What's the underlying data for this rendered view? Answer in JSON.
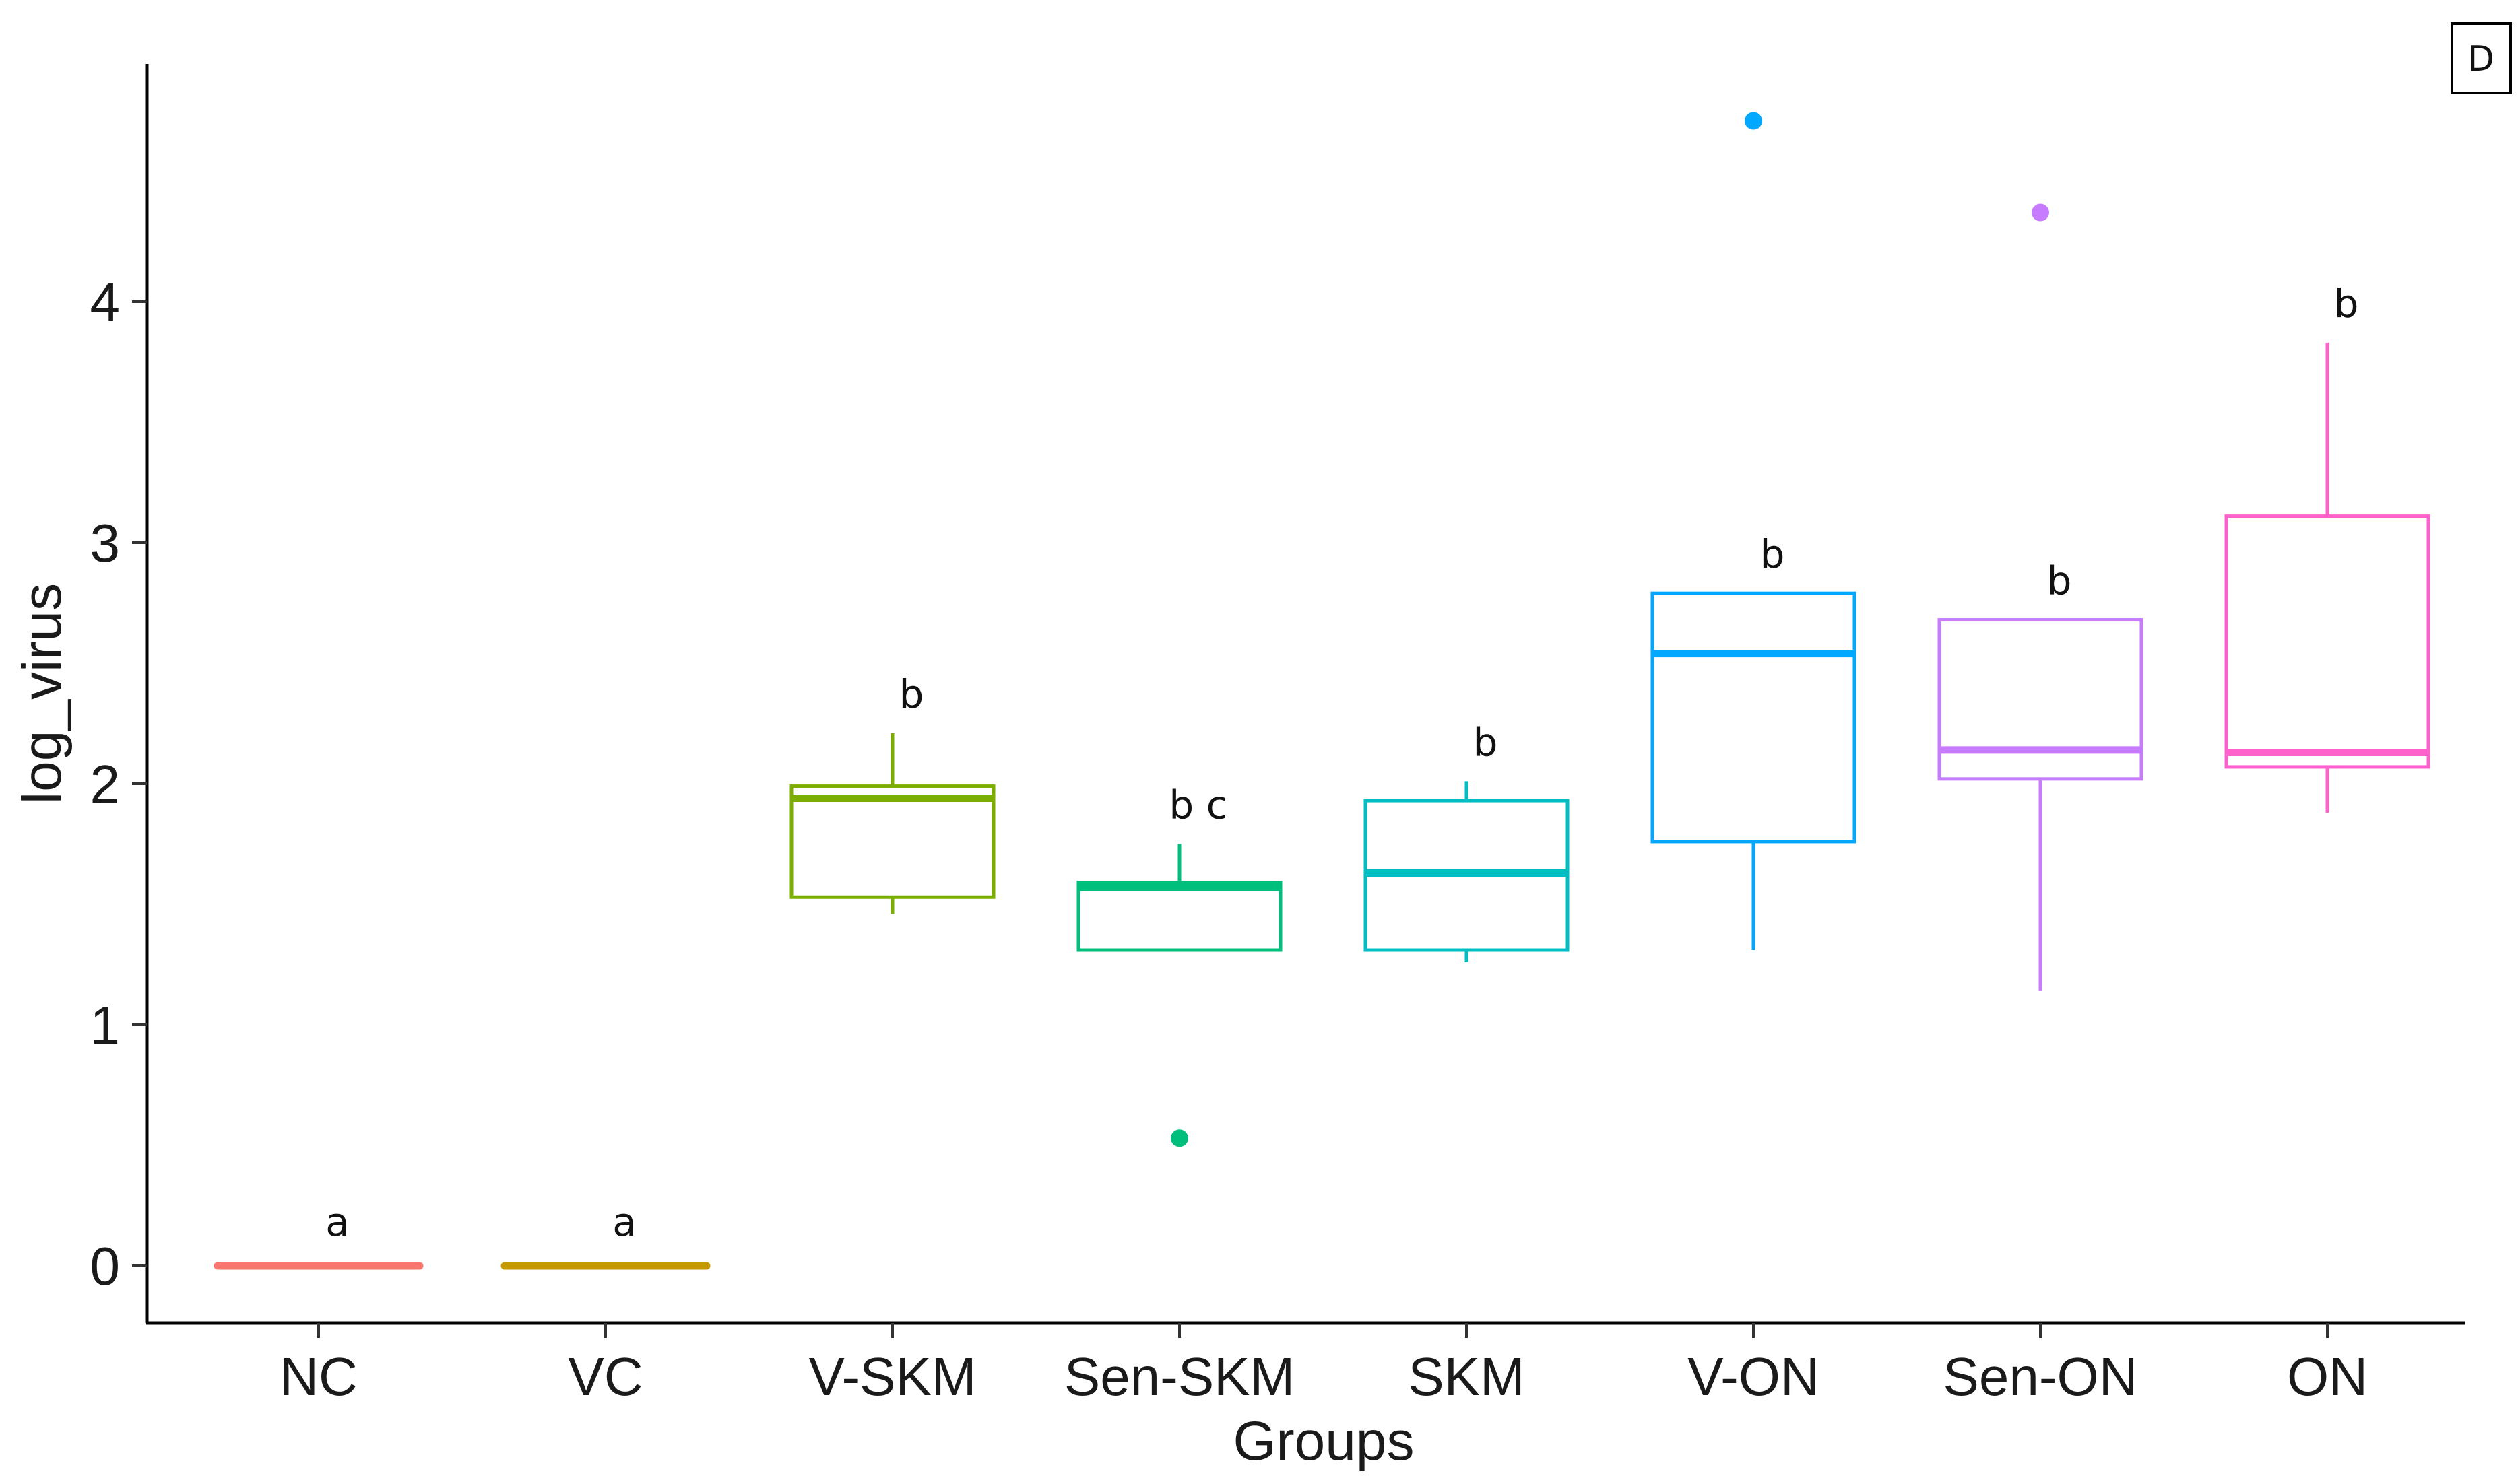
{
  "chart_data": {
    "type": "box",
    "title": "",
    "panel_label": "D",
    "xlabel": "Groups",
    "ylabel": "log_virus",
    "ylim": [
      -0.25,
      4.98
    ],
    "yticks": [
      0,
      1,
      2,
      3,
      4
    ],
    "ytick_labels": [
      "0",
      "1",
      "2",
      "3",
      "4"
    ],
    "grid": false,
    "legend": "none",
    "categories": [
      "NC",
      "VC",
      "V-SKM",
      "Sen-SKM",
      "SKM",
      "V-ON",
      "Sen-ON",
      "ON"
    ],
    "series": [
      {
        "name": "NC",
        "color": "#F8766D",
        "whisker_low": 0,
        "q1": 0,
        "median": 0,
        "q3": 0,
        "whisker_high": 0,
        "outliers": [],
        "letter": "a"
      },
      {
        "name": "VC",
        "color": "#C49A00",
        "whisker_low": 0,
        "q1": 0,
        "median": 0,
        "q3": 0,
        "whisker_high": 0,
        "outliers": [],
        "letter": "a"
      },
      {
        "name": "V-SKM",
        "color": "#7CAE00",
        "whisker_low": 1.46,
        "q1": 1.53,
        "median": 1.94,
        "q3": 1.99,
        "whisker_high": 2.21,
        "outliers": [],
        "letter": "b"
      },
      {
        "name": "Sen-SKM",
        "color": "#00BF7D",
        "whisker_low": 1.31,
        "q1": 1.31,
        "median": 1.57,
        "q3": 1.59,
        "whisker_high": 1.75,
        "outliers": [
          0.53
        ],
        "letter": "b c"
      },
      {
        "name": "SKM",
        "color": "#00BFC4",
        "whisker_low": 1.26,
        "q1": 1.31,
        "median": 1.63,
        "q3": 1.93,
        "whisker_high": 2.01,
        "outliers": [],
        "letter": "b"
      },
      {
        "name": "V-ON",
        "color": "#00A9FF",
        "whisker_low": 1.31,
        "q1": 1.76,
        "median": 2.54,
        "q3": 2.79,
        "whisker_high": 2.79,
        "outliers": [
          4.75
        ],
        "letter": "b"
      },
      {
        "name": "Sen-ON",
        "color": "#C77CFF",
        "whisker_low": 1.14,
        "q1": 2.02,
        "median": 2.14,
        "q3": 2.68,
        "whisker_high": 2.68,
        "outliers": [
          4.37
        ],
        "letter": "b"
      },
      {
        "name": "ON",
        "color": "#FF61CC",
        "whisker_low": 1.88,
        "q1": 2.07,
        "median": 2.13,
        "q3": 3.11,
        "whisker_high": 3.83,
        "outliers": [],
        "letter": "b"
      }
    ]
  }
}
